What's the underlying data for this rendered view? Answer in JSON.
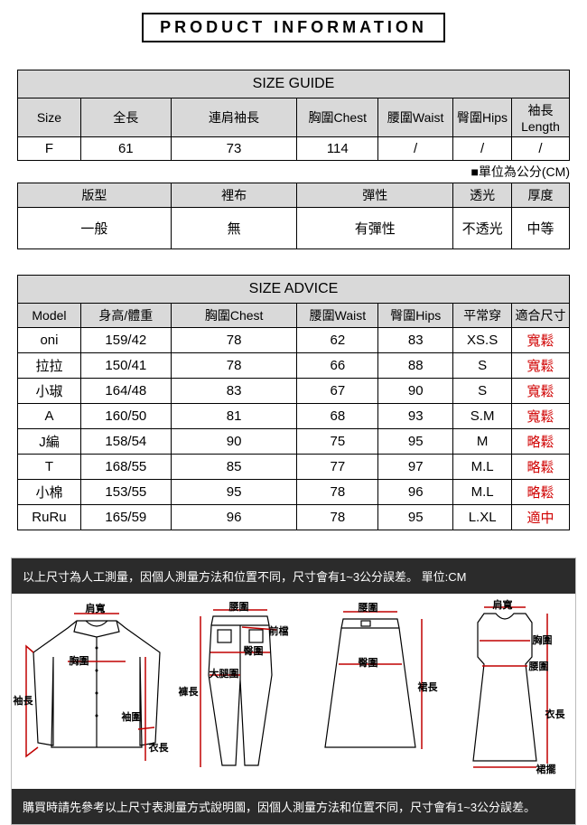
{
  "header": "PRODUCT INFORMATION",
  "sizeGuide": {
    "title": "SIZE GUIDE",
    "headers": [
      "Size",
      "全長",
      "連肩袖長",
      "胸圍Chest",
      "腰圍Waist",
      "臀圍Hips",
      "袖長Length"
    ],
    "row": [
      "F",
      "61",
      "73",
      "114",
      "/",
      "/",
      "/"
    ],
    "unitNote": "■單位為公分(CM)"
  },
  "fabric": {
    "headers": [
      "版型",
      "裡布",
      "彈性",
      "透光",
      "厚度"
    ],
    "row": [
      "一般",
      "無",
      "有彈性",
      "不透光",
      "中等"
    ]
  },
  "sizeAdvice": {
    "title": "SIZE ADVICE",
    "headers": [
      "Model",
      "身高/體重",
      "胸圍Chest",
      "腰圍Waist",
      "臀圍Hips",
      "平常穿",
      "適合尺寸"
    ],
    "rows": [
      [
        "oni",
        "159/42",
        "78",
        "62",
        "83",
        "XS.S",
        "寬鬆"
      ],
      [
        "拉拉",
        "150/41",
        "78",
        "66",
        "88",
        "S",
        "寬鬆"
      ],
      [
        "小琡",
        "164/48",
        "83",
        "67",
        "90",
        "S",
        "寬鬆"
      ],
      [
        "A",
        "160/50",
        "81",
        "68",
        "93",
        "S.M",
        "寬鬆"
      ],
      [
        "J編",
        "158/54",
        "90",
        "75",
        "95",
        "M",
        "略鬆"
      ],
      [
        "T",
        "168/55",
        "85",
        "77",
        "97",
        "M.L",
        "略鬆"
      ],
      [
        "小棉",
        "153/55",
        "95",
        "78",
        "96",
        "M.L",
        "略鬆"
      ],
      [
        "RuRu",
        "165/59",
        "96",
        "78",
        "95",
        "L.XL",
        "適中"
      ]
    ]
  },
  "diagram": {
    "topNote": "以上尺寸為人工測量，因個人測量方法和位置不同，尺寸會有1~3公分誤差。 單位:CM",
    "bottomNote": "購買時請先參考以上尺寸表測量方式說明圖，因個人測量方法和位置不同，尺寸會有1~3公分誤差。",
    "labels": {
      "shoulder": "肩寬",
      "chest": "胸圍",
      "sleeve": "袖長",
      "cuff": "袖圍",
      "length": "衣長",
      "waist": "腰圍",
      "frontRise": "前檔",
      "hip": "臀圍",
      "thigh": "大腿圍",
      "pantLen": "褲長",
      "skirtLen": "裙長",
      "hem": "裙擺"
    }
  },
  "colors": {
    "headerBg": "#d9d9d9",
    "measureLine": "#c00000",
    "fitText": "#d00000",
    "darkBar": "#2b2b2b"
  },
  "colWidths": {
    "guide": [
      70,
      100,
      140,
      90,
      83,
      65,
      64
    ],
    "fabric": [
      170,
      140,
      173,
      65,
      64
    ],
    "advice": [
      70,
      100,
      140,
      90,
      83,
      65,
      64
    ]
  }
}
